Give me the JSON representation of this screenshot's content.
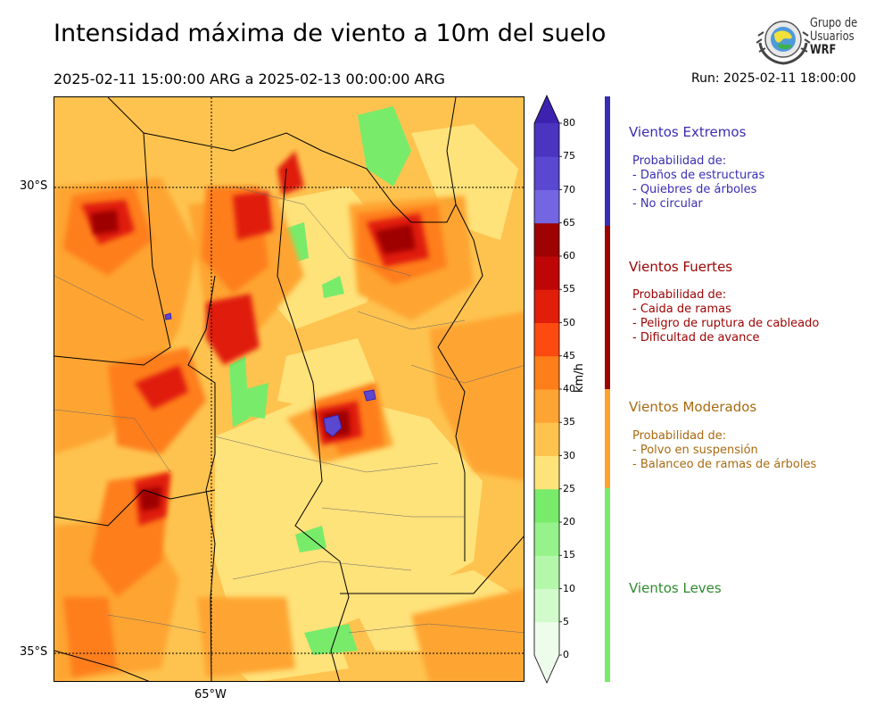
{
  "header": {
    "title": "Intensidad máxima de viento a 10m del suelo",
    "period": "2025-02-11 15:00:00 ARG  a  2025-02-13 00:00:00 ARG",
    "run": "Run: 2025-02-11 18:00:00"
  },
  "logo": {
    "line1": "Grupo de",
    "line2": "Usuarios",
    "line3": "WRF"
  },
  "map": {
    "lat_labels": [
      "30°S",
      "35°S"
    ],
    "lon_labels": [
      "65°W"
    ],
    "hotspot_icon": "wind-max-marker"
  },
  "colorbar": {
    "unit": "km/h",
    "ticks": [
      "0",
      "5",
      "10",
      "15",
      "20",
      "25",
      "30",
      "35",
      "40",
      "45",
      "50",
      "55",
      "60",
      "65",
      "70",
      "75",
      "80"
    ],
    "colors": [
      "#eefcec",
      "#d2fbcc",
      "#b4f7ab",
      "#96f28a",
      "#78eb6a",
      "#fee27a",
      "#fec34f",
      "#fea433",
      "#fe7e1a",
      "#fd4a10",
      "#e01e0a",
      "#bf0606",
      "#9e0202",
      "#7466e0",
      "#5a48d0",
      "#4a34c0",
      "#3d22b0"
    ],
    "max_value": 80
  },
  "categories": [
    {
      "title": "Vientos Extremos",
      "color": "#3a2db0",
      "prob_label": "Probabilidad de:",
      "items": [
        "- Daños de estructuras",
        "- Quiebres de árboles",
        "- No circular"
      ]
    },
    {
      "title": "Vientos Fuertes",
      "color": "#9b0202",
      "prob_label": "Probabilidad de:",
      "items": [
        "- Caida de ramas",
        "- Peligro de ruptura de cableado",
        "- Dificultad de avance"
      ]
    },
    {
      "title": "Vientos Moderados",
      "color": "#a86a10",
      "bar_color": "#fea22c",
      "prob_label": "Probabilidad de:",
      "items": [
        "- Polvo en suspensión",
        "- Balanceo de ramas de árboles"
      ]
    },
    {
      "title": "Vientos Leves",
      "color": "#2e8b2e",
      "bar_color": "#78eb6a"
    }
  ]
}
